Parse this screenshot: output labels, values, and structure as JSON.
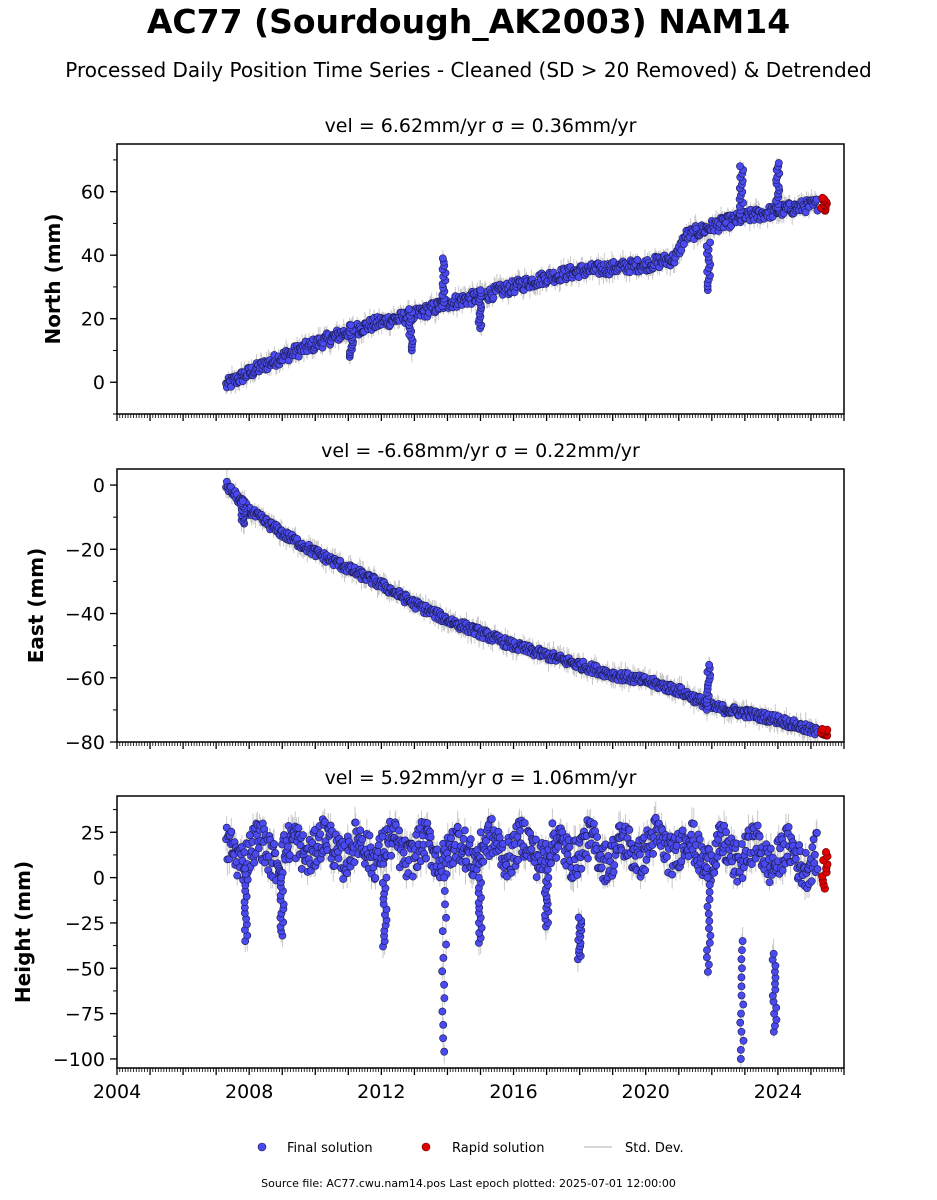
{
  "title": "AC77 (Sourdough_AK2003) NAM14",
  "subtitle": "Processed Daily Position Time Series - Cleaned (SD > 20 Removed) & Detrended",
  "footer": "Source file: AC77.cwu.nam14.pos  Last epoch plotted: 2025-07-01 12:00:00",
  "colors": {
    "final": "#4a4af0",
    "rapid": "#e00000",
    "stddev": "#c8c8c8"
  },
  "legend": {
    "final": "Final solution",
    "rapid": "Rapid solution",
    "stddev": "Std. Dev."
  },
  "chart_data": [
    {
      "type": "scatter",
      "panel": "north",
      "title_prefix": "vel = 6.62mm/yr",
      "title_sigma": "σ = 0.36mm/yr",
      "ylabel": "North (mm)",
      "ylim": [
        -10,
        75
      ],
      "yticks": [
        0,
        20,
        40,
        60
      ],
      "xlim": [
        2004,
        2026
      ],
      "x": [
        2007.3,
        2008,
        2009,
        2010,
        2011,
        2012,
        2013,
        2014,
        2015,
        2016,
        2017,
        2018,
        2019,
        2020,
        2020.9,
        2021.2,
        2022,
        2023,
        2024,
        2025.2
      ],
      "y": [
        -1,
        3,
        8,
        12,
        16,
        19,
        21,
        25,
        27,
        30,
        33,
        35,
        36,
        37,
        39,
        46,
        49,
        52,
        54,
        56
      ],
      "rapid_x": [
        2025.3,
        2025.5
      ],
      "rapid_y": [
        54,
        58
      ],
      "excursions": [
        {
          "x": 2013.9,
          "y": [
            24,
            39
          ]
        },
        {
          "x": 2015.0,
          "y": [
            17,
            29
          ]
        },
        {
          "x": 2021.9,
          "y": [
            29,
            44
          ]
        },
        {
          "x": 2022.9,
          "y": [
            53,
            68
          ]
        },
        {
          "x": 2024.0,
          "y": [
            55,
            69
          ]
        },
        {
          "x": 2012.9,
          "y": [
            10,
            23
          ]
        },
        {
          "x": 2011.1,
          "y": [
            8,
            18
          ]
        }
      ]
    },
    {
      "type": "scatter",
      "panel": "east",
      "title_prefix": "vel = -6.68mm/yr",
      "title_sigma": "σ = 0.22mm/yr",
      "ylabel": "East (mm)",
      "ylim": [
        -80,
        5
      ],
      "yticks": [
        0,
        -20,
        -40,
        -60,
        -80
      ],
      "xlim": [
        2004,
        2026
      ],
      "x": [
        2007.3,
        2008,
        2009,
        2010,
        2011,
        2012,
        2013,
        2014,
        2015,
        2016,
        2017,
        2018,
        2019,
        2020,
        2021,
        2022,
        2023,
        2024,
        2025.2
      ],
      "y": [
        0,
        -8,
        -15,
        -21,
        -26,
        -31,
        -37,
        -42,
        -46,
        -50,
        -53,
        -56,
        -59,
        -61,
        -64,
        -69,
        -71,
        -73,
        -77
      ],
      "rapid_x": [
        2025.3,
        2025.5
      ],
      "rapid_y": [
        -78,
        -76
      ],
      "excursions": [
        {
          "x": 2021.9,
          "y": [
            -70,
            -56
          ]
        },
        {
          "x": 2007.8,
          "y": [
            -12,
            -5
          ]
        }
      ]
    },
    {
      "type": "scatter",
      "panel": "height",
      "title_prefix": "vel = 5.92mm/yr",
      "title_sigma": "σ = 1.06mm/yr",
      "ylabel": "Height (mm)",
      "ylim": [
        -105,
        45
      ],
      "yticks": [
        25,
        0,
        -25,
        -50,
        -75,
        -100
      ],
      "xlim": [
        2004,
        2026
      ],
      "x": [
        2007.3,
        2008,
        2009,
        2010,
        2011,
        2012,
        2013,
        2014,
        2015,
        2016,
        2017,
        2018,
        2019,
        2020,
        2021,
        2022,
        2023,
        2024,
        2025.2
      ],
      "y": [
        12,
        16,
        14,
        18,
        15,
        16,
        15,
        14,
        16,
        17,
        15,
        16,
        14,
        17,
        18,
        12,
        14,
        12,
        10
      ],
      "rapid_x": [
        2025.3,
        2025.5
      ],
      "rapid_y": [
        -6,
        14
      ],
      "excursions": [
        {
          "x": 2007.9,
          "y": [
            -35,
            5
          ]
        },
        {
          "x": 2009.0,
          "y": [
            -32,
            0
          ]
        },
        {
          "x": 2012.1,
          "y": [
            -38,
            0
          ]
        },
        {
          "x": 2013.9,
          "y": [
            -96,
            0
          ]
        },
        {
          "x": 2015.0,
          "y": [
            -36,
            0
          ]
        },
        {
          "x": 2017.0,
          "y": [
            -27,
            0
          ]
        },
        {
          "x": 2018.0,
          "y": [
            -45,
            -22
          ]
        },
        {
          "x": 2021.9,
          "y": [
            -52,
            0
          ]
        },
        {
          "x": 2022.9,
          "y": [
            -100,
            -35
          ]
        },
        {
          "x": 2023.9,
          "y": [
            -85,
            -42
          ]
        }
      ]
    }
  ],
  "xticks": [
    2004,
    2008,
    2012,
    2016,
    2020,
    2024
  ]
}
